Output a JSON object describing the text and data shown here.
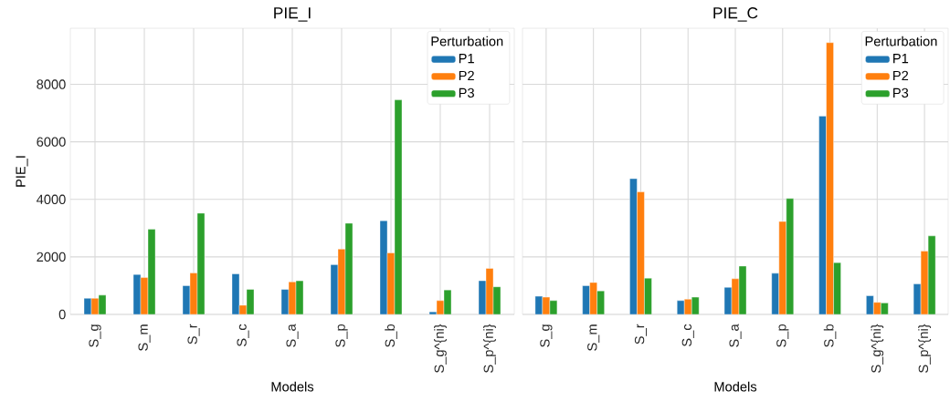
{
  "chart_data": [
    {
      "type": "bar",
      "title": "PIE_I",
      "xlabel": "Models",
      "ylabel": "PIE_I",
      "legend_title": "Perturbation",
      "legend": "top right",
      "grid": true,
      "categories": [
        "S_g",
        "S_m",
        "S_r",
        "S_c",
        "S_a",
        "S_p",
        "S_b",
        "S_g^{ni}",
        "S_p^{ni}"
      ],
      "ylim": [
        0,
        9950
      ],
      "yticks": [
        0,
        2000,
        4000,
        6000,
        8000
      ],
      "series": [
        {
          "name": "P1",
          "color": "#1f77b4",
          "values": [
            560,
            1390,
            1000,
            1410,
            870,
            1730,
            3260,
            90,
            1170
          ]
        },
        {
          "name": "P2",
          "color": "#ff7f0e",
          "values": [
            560,
            1280,
            1440,
            320,
            1130,
            2270,
            2140,
            480,
            1600
          ]
        },
        {
          "name": "P3",
          "color": "#2ca02c",
          "values": [
            670,
            2960,
            3520,
            870,
            1170,
            3170,
            7460,
            850,
            960
          ]
        }
      ]
    },
    {
      "type": "bar",
      "title": "PIE_C",
      "xlabel": "Models",
      "legend_title": "Perturbation",
      "legend": "top right",
      "grid": true,
      "tick_labels": "x",
      "categories": [
        "S_g",
        "S_m",
        "S_r",
        "S_c",
        "S_a",
        "S_p",
        "S_b",
        "S_g^{ni}",
        "S_p^{ni}"
      ],
      "ylim": [
        0,
        9950
      ],
      "yticks": [
        0,
        2000,
        4000,
        6000,
        8000
      ],
      "series": [
        {
          "name": "P1",
          "color": "#1f77b4",
          "values": [
            630,
            1000,
            4720,
            480,
            940,
            1430,
            6900,
            650,
            1060
          ]
        },
        {
          "name": "P2",
          "color": "#ff7f0e",
          "values": [
            600,
            1110,
            4260,
            530,
            1240,
            3230,
            9450,
            420,
            2200
          ]
        },
        {
          "name": "P3",
          "color": "#2ca02c",
          "values": [
            480,
            820,
            1260,
            600,
            1680,
            4030,
            1800,
            400,
            2730
          ]
        }
      ]
    }
  ]
}
